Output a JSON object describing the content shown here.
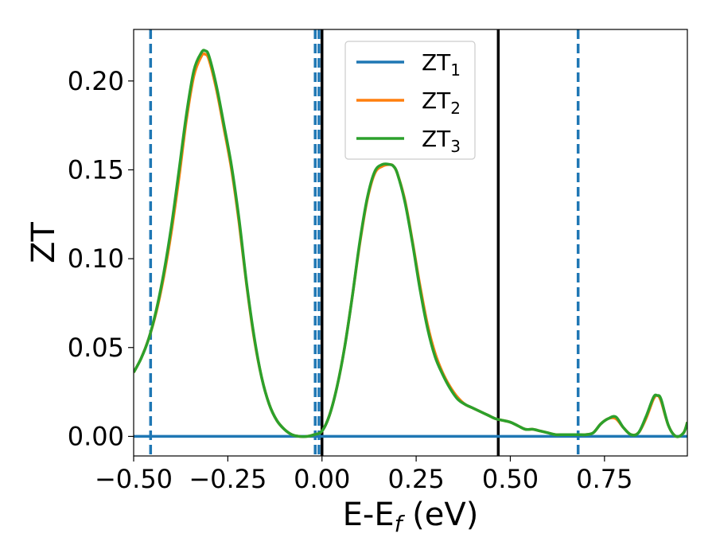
{
  "chart_data": {
    "type": "line",
    "title": "",
    "xlabel": "E-E",
    "xlabel_sub": "f",
    "xlabel_unit": " (eV)",
    "ylabel": "ZT",
    "xlim": [
      -0.5,
      0.97
    ],
    "ylim": [
      -0.011,
      0.229
    ],
    "grid": false,
    "legend_position": "top-center",
    "x_ticks": [
      -0.5,
      -0.25,
      0.0,
      0.25,
      0.5,
      0.75
    ],
    "x_tick_labels": [
      "−0.50",
      "−0.25",
      "0.00",
      "0.25",
      "0.50",
      "0.75"
    ],
    "y_ticks": [
      0.0,
      0.05,
      0.1,
      0.15,
      0.2
    ],
    "y_tick_labels": [
      "0.00",
      "0.05",
      "0.10",
      "0.15",
      "0.20"
    ],
    "vertical_lines": [
      {
        "x": -0.455,
        "style": "dashed",
        "color": "#1f77b4"
      },
      {
        "x": -0.018,
        "style": "dashed",
        "color": "#1f77b4"
      },
      {
        "x": -0.008,
        "style": "dashed",
        "color": "#1f77b4"
      },
      {
        "x": 0.0,
        "style": "solid",
        "color": "#000000"
      },
      {
        "x": 0.468,
        "style": "solid",
        "color": "#000000"
      },
      {
        "x": 0.68,
        "style": "dashed",
        "color": "#1f77b4"
      }
    ],
    "series": [
      {
        "name": "ZT",
        "sub": "1",
        "color": "#1f77b4",
        "x": [
          -0.5,
          0.97
        ],
        "y": [
          0.0,
          0.0
        ]
      },
      {
        "name": "ZT",
        "sub": "2",
        "color": "#ff7f0e",
        "x": [
          -0.5,
          -0.48,
          -0.46,
          -0.44,
          -0.42,
          -0.4,
          -0.38,
          -0.36,
          -0.34,
          -0.32,
          -0.31,
          -0.3,
          -0.28,
          -0.26,
          -0.24,
          -0.22,
          -0.2,
          -0.18,
          -0.16,
          -0.14,
          -0.12,
          -0.1,
          -0.08,
          -0.06,
          -0.04,
          -0.02,
          0.0,
          0.02,
          0.04,
          0.06,
          0.08,
          0.1,
          0.12,
          0.14,
          0.16,
          0.18,
          0.19,
          0.2,
          0.22,
          0.24,
          0.26,
          0.28,
          0.3,
          0.32,
          0.34,
          0.36,
          0.38,
          0.4,
          0.42,
          0.44,
          0.46,
          0.48,
          0.5,
          0.52,
          0.54,
          0.56,
          0.58,
          0.6,
          0.62,
          0.64,
          0.66,
          0.68,
          0.7,
          0.72,
          0.74,
          0.76,
          0.78,
          0.8,
          0.82,
          0.84,
          0.86,
          0.88,
          0.89,
          0.9,
          0.92,
          0.94,
          0.96,
          0.97
        ],
        "y": [
          0.036,
          0.044,
          0.055,
          0.07,
          0.09,
          0.115,
          0.145,
          0.178,
          0.203,
          0.214,
          0.215,
          0.212,
          0.195,
          0.173,
          0.15,
          0.12,
          0.085,
          0.055,
          0.033,
          0.018,
          0.009,
          0.004,
          0.001,
          0.0,
          0.0,
          0.001,
          0.003,
          0.012,
          0.028,
          0.05,
          0.078,
          0.108,
          0.133,
          0.148,
          0.152,
          0.153,
          0.152,
          0.148,
          0.133,
          0.11,
          0.085,
          0.063,
          0.047,
          0.036,
          0.028,
          0.022,
          0.018,
          0.016,
          0.014,
          0.012,
          0.01,
          0.009,
          0.008,
          0.006,
          0.004,
          0.004,
          0.003,
          0.002,
          0.001,
          0.001,
          0.001,
          0.001,
          0.001,
          0.002,
          0.007,
          0.01,
          0.01,
          0.005,
          0.001,
          0.002,
          0.01,
          0.021,
          0.023,
          0.02,
          0.006,
          0.0,
          0.002,
          0.008
        ]
      },
      {
        "name": "ZT",
        "sub": "3",
        "color": "#2ca02c",
        "x": [
          -0.5,
          -0.48,
          -0.46,
          -0.44,
          -0.42,
          -0.4,
          -0.38,
          -0.36,
          -0.34,
          -0.32,
          -0.31,
          -0.3,
          -0.28,
          -0.26,
          -0.24,
          -0.22,
          -0.2,
          -0.18,
          -0.16,
          -0.14,
          -0.12,
          -0.1,
          -0.08,
          -0.06,
          -0.04,
          -0.02,
          0.0,
          0.02,
          0.04,
          0.06,
          0.08,
          0.1,
          0.12,
          0.14,
          0.16,
          0.18,
          0.19,
          0.2,
          0.22,
          0.24,
          0.26,
          0.28,
          0.3,
          0.32,
          0.34,
          0.36,
          0.38,
          0.4,
          0.42,
          0.44,
          0.46,
          0.48,
          0.5,
          0.52,
          0.54,
          0.56,
          0.58,
          0.6,
          0.62,
          0.64,
          0.66,
          0.68,
          0.7,
          0.72,
          0.74,
          0.76,
          0.78,
          0.8,
          0.82,
          0.84,
          0.86,
          0.88,
          0.89,
          0.9,
          0.92,
          0.94,
          0.96,
          0.97
        ],
        "y": [
          0.036,
          0.044,
          0.055,
          0.071,
          0.092,
          0.118,
          0.149,
          0.181,
          0.206,
          0.216,
          0.217,
          0.214,
          0.197,
          0.175,
          0.152,
          0.122,
          0.086,
          0.056,
          0.033,
          0.018,
          0.009,
          0.004,
          0.001,
          0.0,
          0.0,
          0.001,
          0.003,
          0.012,
          0.028,
          0.05,
          0.078,
          0.109,
          0.134,
          0.149,
          0.153,
          0.153,
          0.152,
          0.148,
          0.132,
          0.109,
          0.083,
          0.061,
          0.045,
          0.035,
          0.027,
          0.021,
          0.018,
          0.016,
          0.014,
          0.012,
          0.01,
          0.009,
          0.008,
          0.006,
          0.004,
          0.004,
          0.003,
          0.002,
          0.001,
          0.001,
          0.001,
          0.001,
          0.001,
          0.002,
          0.007,
          0.01,
          0.011,
          0.005,
          0.001,
          0.002,
          0.011,
          0.022,
          0.023,
          0.021,
          0.006,
          0.0,
          0.002,
          0.008
        ]
      }
    ]
  }
}
